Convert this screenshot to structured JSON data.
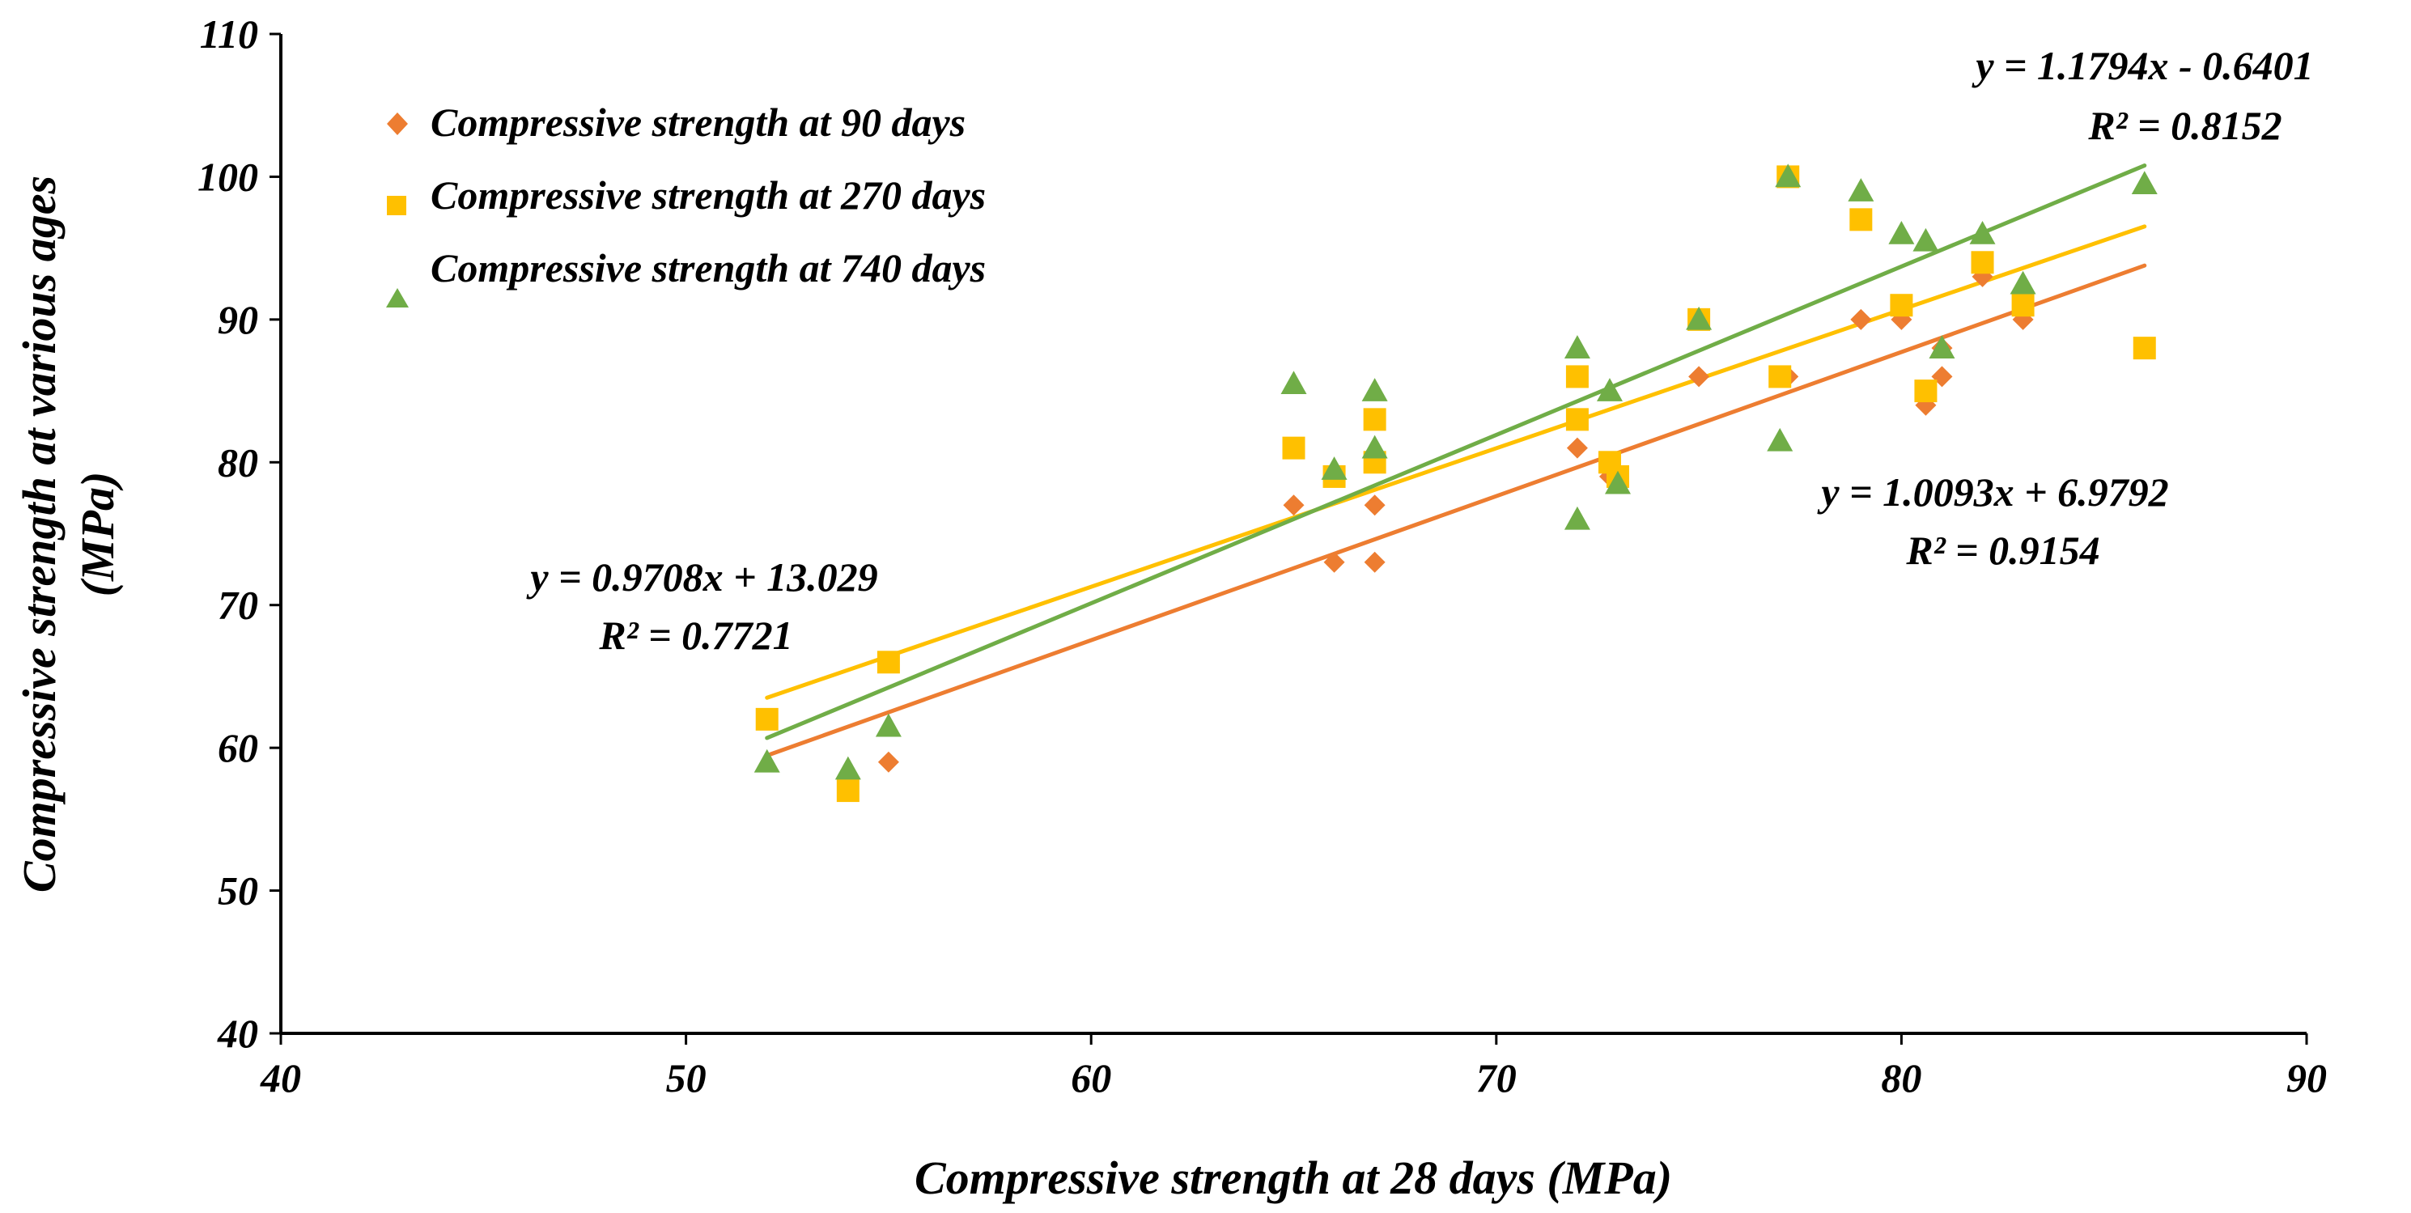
{
  "chart_data": {
    "type": "scatter",
    "title": "",
    "xlabel": "Compressive strength at 28 days (MPa)",
    "ylabel_lines": [
      "Compressive strength at various ages",
      "(MPa)"
    ],
    "xlim": [
      40,
      90
    ],
    "ylim": [
      40,
      110
    ],
    "xticks": [
      40,
      50,
      60,
      70,
      80,
      90
    ],
    "yticks": [
      40,
      50,
      60,
      70,
      80,
      90,
      100,
      110
    ],
    "grid": false,
    "legend_position": "top-left",
    "series": [
      {
        "name": "Compressive strength at 90 days",
        "marker": "diamond",
        "color": "#ED7D31",
        "points": [
          [
            55,
            59
          ],
          [
            65,
            77
          ],
          [
            66,
            73
          ],
          [
            67,
            77
          ],
          [
            67,
            73
          ],
          [
            72,
            81
          ],
          [
            72.8,
            79
          ],
          [
            75,
            86
          ],
          [
            77.2,
            86
          ],
          [
            79,
            90
          ],
          [
            80,
            90
          ],
          [
            80.6,
            84
          ],
          [
            81,
            86
          ],
          [
            81,
            88
          ],
          [
            82,
            93
          ],
          [
            83,
            90
          ],
          [
            83,
            91
          ]
        ],
        "trend": {
          "slope": 1.0093,
          "intercept": 6.9792,
          "x_range": [
            52,
            86
          ]
        }
      },
      {
        "name": "Compressive strength at 270 days",
        "marker": "square",
        "color": "#FFC000",
        "points": [
          [
            52,
            62
          ],
          [
            54,
            57
          ],
          [
            55,
            66
          ],
          [
            65,
            81
          ],
          [
            66,
            79
          ],
          [
            67,
            83
          ],
          [
            67,
            80
          ],
          [
            72,
            86
          ],
          [
            72,
            83
          ],
          [
            72.8,
            80
          ],
          [
            73,
            79
          ],
          [
            75,
            90
          ],
          [
            77,
            86
          ],
          [
            77.2,
            100
          ],
          [
            79,
            97
          ],
          [
            80,
            91
          ],
          [
            80.6,
            85
          ],
          [
            82,
            94
          ],
          [
            83,
            91
          ],
          [
            86,
            88
          ]
        ],
        "trend": {
          "slope": 0.9708,
          "intercept": 13.029,
          "x_range": [
            52,
            86
          ]
        }
      },
      {
        "name": "Compressive strength at 740 days",
        "marker": "triangle",
        "color": "#70AD47",
        "points": [
          [
            52,
            59
          ],
          [
            54,
            58.5
          ],
          [
            55,
            61.5
          ],
          [
            65,
            85.5
          ],
          [
            66,
            79.5
          ],
          [
            67,
            85
          ],
          [
            67,
            81
          ],
          [
            72,
            88
          ],
          [
            72,
            76
          ],
          [
            72.8,
            85
          ],
          [
            73,
            78.5
          ],
          [
            75,
            90
          ],
          [
            77,
            81.5
          ],
          [
            77.2,
            100
          ],
          [
            79,
            99
          ],
          [
            80,
            96
          ],
          [
            80.6,
            95.5
          ],
          [
            81,
            88
          ],
          [
            82,
            96
          ],
          [
            83,
            92.5
          ],
          [
            86,
            99.5
          ]
        ],
        "trend": {
          "slope": 1.1794,
          "intercept": -0.6401,
          "x_range": [
            52,
            86
          ]
        }
      }
    ],
    "annotations": [
      {
        "name": "eq-270",
        "lines": [
          "y = 0.9708x + 13.029",
          "R² = 0.7721"
        ]
      },
      {
        "name": "eq-90",
        "lines": [
          "y = 1.0093x + 6.9792",
          "R² = 0.9154"
        ]
      },
      {
        "name": "eq-740",
        "lines": [
          "y = 1.1794x - 0.6401",
          "R² = 0.8152"
        ]
      }
    ]
  }
}
